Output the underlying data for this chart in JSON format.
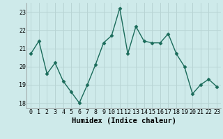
{
  "x": [
    0,
    1,
    2,
    3,
    4,
    5,
    6,
    7,
    8,
    9,
    10,
    11,
    12,
    13,
    14,
    15,
    16,
    17,
    18,
    19,
    20,
    21,
    22,
    23
  ],
  "y": [
    20.7,
    21.4,
    19.6,
    20.2,
    19.2,
    18.6,
    18.0,
    19.0,
    20.1,
    21.3,
    21.7,
    23.2,
    20.7,
    22.2,
    21.4,
    21.3,
    21.3,
    21.8,
    20.7,
    20.0,
    18.5,
    19.0,
    19.3,
    18.9
  ],
  "line_color": "#1a6b5a",
  "marker": "D",
  "marker_size": 2.5,
  "bg_color": "#ceeaea",
  "grid_color": "#b8d4d4",
  "xlabel": "Humidex (Indice chaleur)",
  "xlim": [
    -0.5,
    23.5
  ],
  "ylim": [
    17.7,
    23.5
  ],
  "yticks": [
    18,
    19,
    20,
    21,
    22,
    23
  ],
  "xticks": [
    0,
    1,
    2,
    3,
    4,
    5,
    6,
    7,
    8,
    9,
    10,
    11,
    12,
    13,
    14,
    15,
    16,
    17,
    18,
    19,
    20,
    21,
    22,
    23
  ],
  "tick_fontsize": 6,
  "xlabel_fontsize": 7.5,
  "linewidth": 1.0
}
